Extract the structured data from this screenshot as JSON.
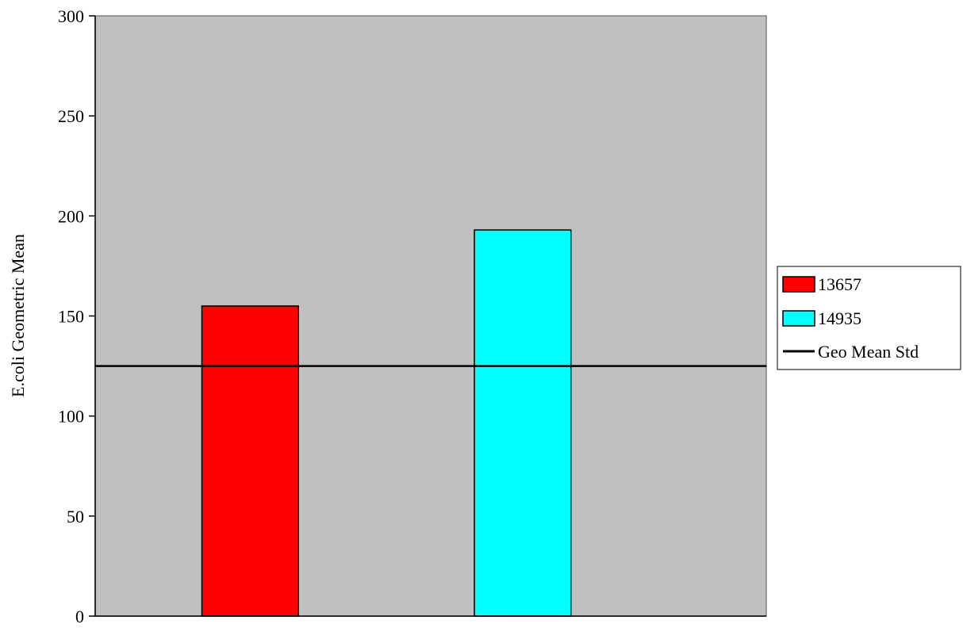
{
  "chart_data": {
    "type": "bar",
    "categories": [
      ""
    ],
    "series": [
      {
        "name": "13657",
        "values": [
          155
        ],
        "color": "#ff0000"
      },
      {
        "name": "14935",
        "values": [
          193
        ],
        "color": "#00ffff"
      }
    ],
    "reference_lines": [
      {
        "name": "Geo Mean Std",
        "value": 125,
        "color": "#000000"
      }
    ],
    "title": "",
    "xlabel": "",
    "ylabel": "E.coli Geometric Mean",
    "ylim": [
      0,
      300
    ],
    "yticks": [
      "0",
      "50",
      "100",
      "150",
      "200",
      "250",
      "300"
    ],
    "grid": false,
    "plot_background": "#c0c0c0",
    "legend_position": "right"
  }
}
